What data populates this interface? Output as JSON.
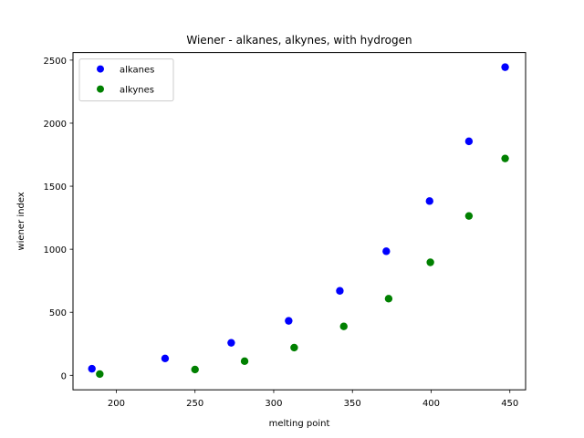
{
  "chart_data": {
    "type": "scatter",
    "title": "Wiener - alkanes, alkynes, with hydrogen",
    "xlabel": "melting point",
    "ylabel": "wiener index",
    "xlim": [
      172.5,
      460
    ],
    "ylim": [
      -115,
      2560
    ],
    "xticks": [
      200,
      250,
      300,
      350,
      400,
      450
    ],
    "yticks": [
      0,
      500,
      1000,
      1500,
      2000,
      2500
    ],
    "grid": false,
    "legend_position": "top-left",
    "series": [
      {
        "name": "alkanes",
        "color": "#0000ff",
        "x": [
          184.5,
          231,
          273,
          309.5,
          342,
          371.5,
          399,
          424,
          447
        ],
        "y": [
          52,
          134,
          258,
          432,
          670,
          984,
          1382,
          1856,
          2444
        ]
      },
      {
        "name": "alkynes",
        "color": "#008000",
        "x": [
          189.5,
          250,
          281.5,
          313,
          344.5,
          373,
          399.5,
          424,
          447
        ],
        "y": [
          10,
          46,
          112,
          220,
          388,
          608,
          896,
          1264,
          1720
        ]
      }
    ]
  }
}
